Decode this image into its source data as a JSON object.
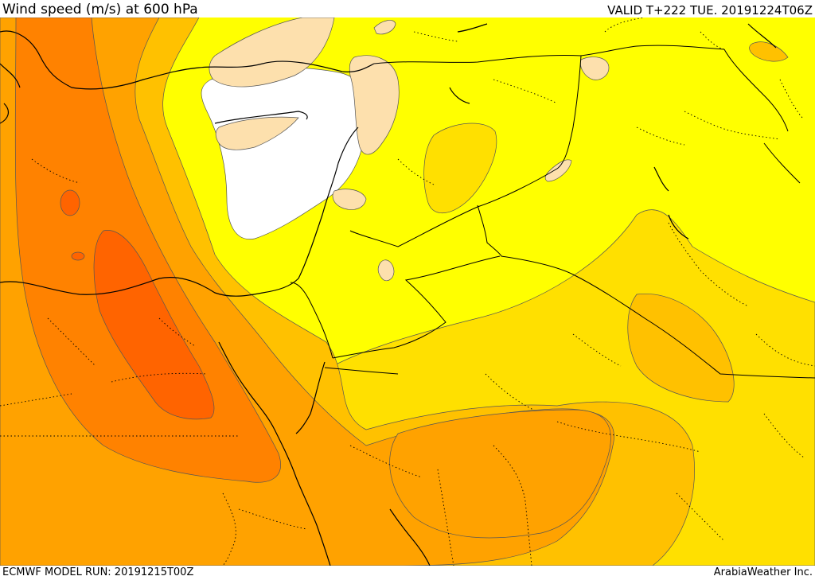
{
  "header": {
    "title": "Wind speed (m/s) at 600 hPa",
    "valid_time": "VALID T+222 TUE. 20191224T06Z"
  },
  "footer": {
    "model_run": "ECMWF MODEL RUN: 20191215T00Z",
    "credit": "ArabiaWeather Inc."
  },
  "palette": {
    "calm_white": "#ffffff",
    "light_tan": "#fde0ad",
    "yellow": "#ffff00",
    "yellow_orange": "#ffe000",
    "orange_light": "#ffc100",
    "orange": "#ffa200",
    "orange_dark": "#ff8200",
    "red_orange": "#ff6400",
    "borders": "#000000"
  }
}
